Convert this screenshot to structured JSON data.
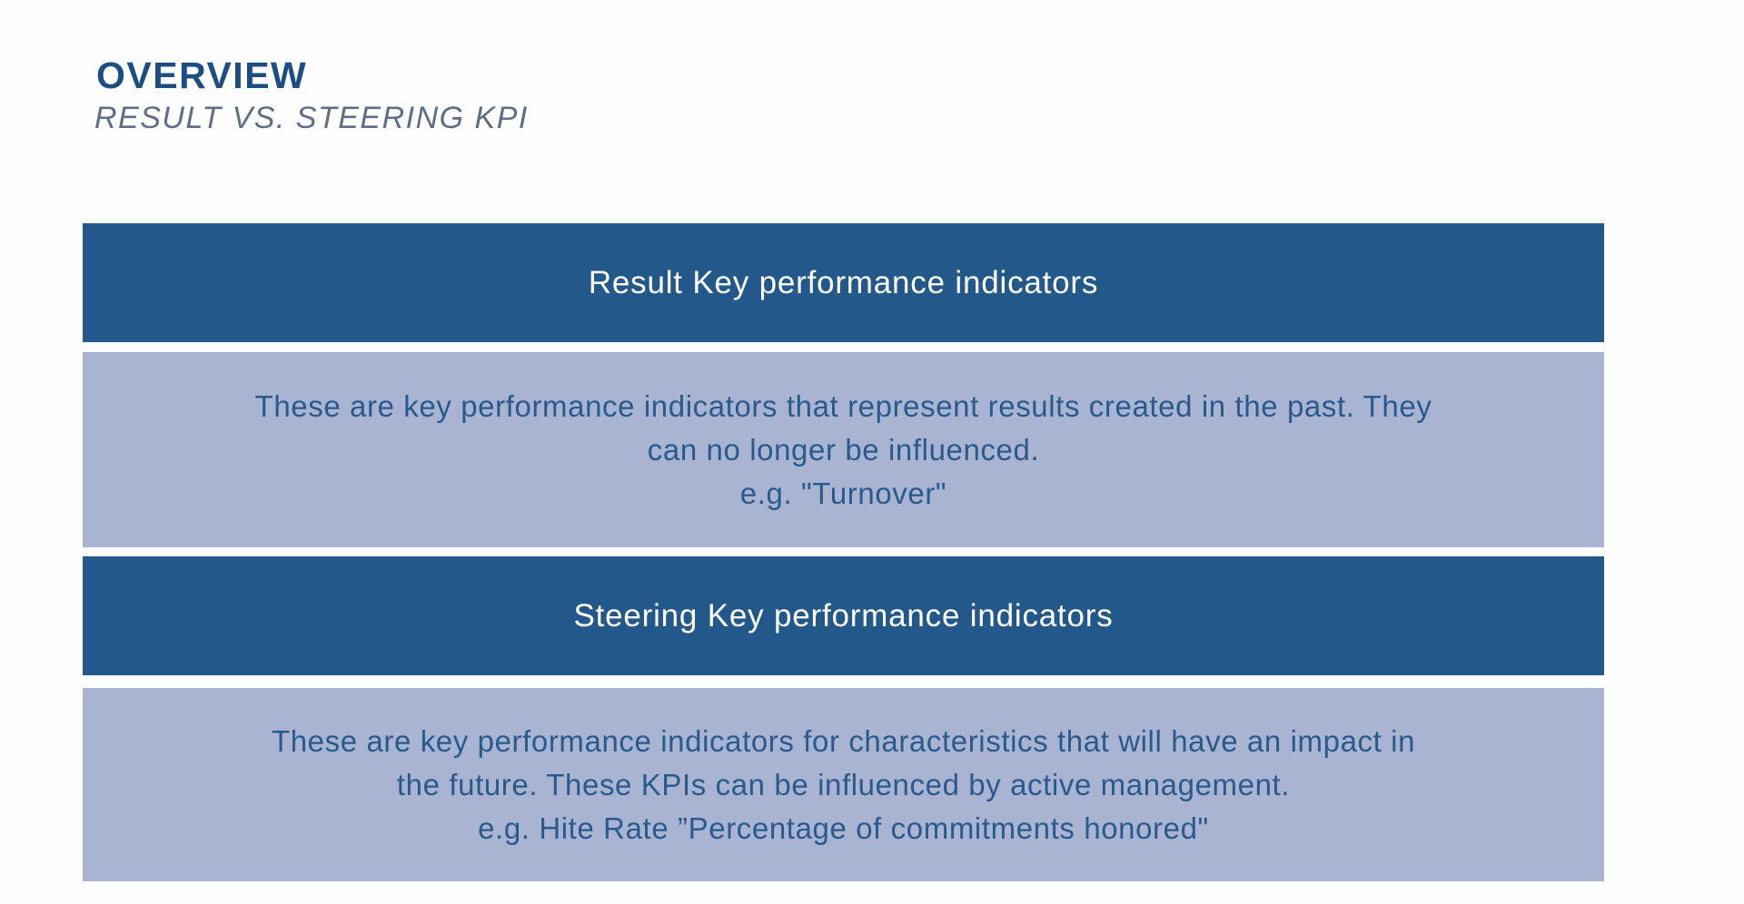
{
  "slide": {
    "title": "OVERVIEW",
    "subtitle": "RESULT VS. STEERING KPI"
  },
  "rows": {
    "result_header": "Result Key performance indicators",
    "result_body": {
      "line1": "These are key performance indicators that represent results created in the past. They",
      "line2": "can no longer be influenced.",
      "line3": "e.g. \"Turnover\""
    },
    "steering_header": "Steering Key performance indicators",
    "steering_body": {
      "line1": "These are key performance indicators for characteristics that will have an impact in",
      "line2": "the future. These KPIs can be influenced by active management.",
      "line3": "e.g. Hite Rate ”Percentage of commitments honored\""
    }
  },
  "colors": {
    "bar_dark": "#23588B",
    "bar_light": "#A8B4D2",
    "text_on_dark": "#FDFEFE",
    "text_on_light": "#2A5A8C",
    "title_color": "#1C4E85",
    "subtitle_color": "#5E6E88",
    "page_bg": "#FEFEFE"
  }
}
